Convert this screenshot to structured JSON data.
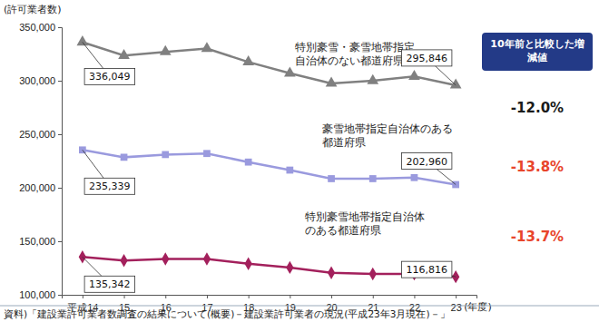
{
  "chart_data": {
    "type": "line",
    "y_label": "(許可業者数)",
    "x_label": "(年度)",
    "categories": [
      "平成14",
      "15",
      "16",
      "17",
      "18",
      "19",
      "20",
      "21",
      "22",
      "23"
    ],
    "series": [
      {
        "name": "特別豪雪・豪雪地帯指定\n自治体のない都道府県",
        "color": "#808080",
        "marker": "triangle",
        "values": [
          336049,
          323500,
          327000,
          330000,
          317500,
          307000,
          297500,
          300000,
          304000,
          295846
        ],
        "value_labels": [
          "336,049",
          null,
          null,
          null,
          null,
          null,
          null,
          null,
          null,
          "295,846"
        ]
      },
      {
        "name": "豪雪地帯指定自治体のある\n都道府県",
        "color": "#9a9ade",
        "marker": "square",
        "values": [
          235339,
          228500,
          231000,
          232000,
          224000,
          216500,
          208500,
          208500,
          209500,
          202960
        ],
        "value_labels": [
          "235,339",
          null,
          null,
          null,
          null,
          null,
          null,
          null,
          null,
          "202,960"
        ]
      },
      {
        "name": "特別豪雪地帯指定自治体\nのある都道府県",
        "color": "#a3205c",
        "marker": "diamond",
        "values": [
          135342,
          132000,
          133500,
          133500,
          129000,
          125500,
          120500,
          119500,
          119500,
          116816
        ],
        "value_labels": [
          "135,342",
          null,
          null,
          null,
          null,
          null,
          null,
          null,
          null,
          "116,816"
        ]
      }
    ],
    "ylim": [
      100000,
      350000
    ],
    "yticks": [
      {
        "value": 100000,
        "label": "100,000"
      },
      {
        "value": 150000,
        "label": "150,000"
      },
      {
        "value": 200000,
        "label": "200,000"
      },
      {
        "value": 250000,
        "label": "250,000"
      },
      {
        "value": 300000,
        "label": "300,000"
      },
      {
        "value": 350000,
        "label": "350,000"
      }
    ],
    "grid": false,
    "change_column": {
      "title": "10年前と比較した増減値",
      "color": "#233a87",
      "items": [
        {
          "text": "-12.0%",
          "color": "#1a1a1a"
        },
        {
          "text": "-13.8%",
          "color": "#e8452c"
        },
        {
          "text": "-13.7%",
          "color": "#e8452c"
        }
      ]
    },
    "source": "資料)「建設業許可業者数調査の結果について(概要)－建設業許可業者の現況(平成23年3月現在)－」"
  }
}
